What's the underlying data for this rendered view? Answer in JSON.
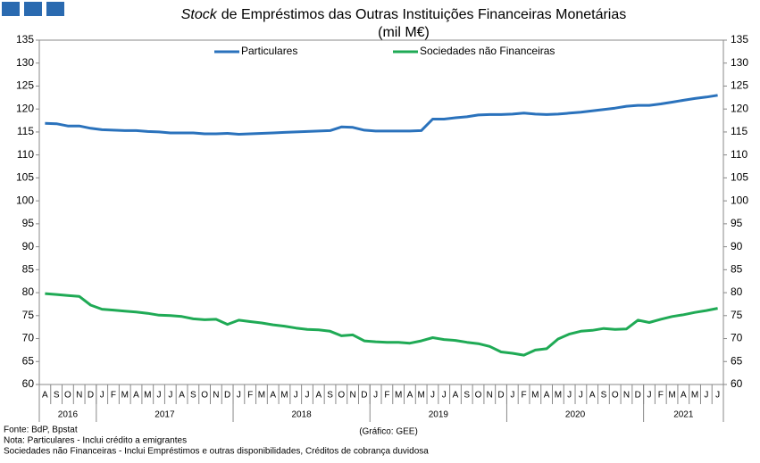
{
  "chart_data": {
    "type": "line",
    "title_emphasis": "Stock",
    "title": "de Empréstimos das Outras Instituições Financeiras Monetárias",
    "subtitle": "(mil M€)",
    "categories": [
      {
        "month": "A",
        "year": "2016"
      },
      {
        "month": "S",
        "year": "2016"
      },
      {
        "month": "O",
        "year": "2016"
      },
      {
        "month": "N",
        "year": "2016"
      },
      {
        "month": "D",
        "year": "2016"
      },
      {
        "month": "J",
        "year": "2017"
      },
      {
        "month": "F",
        "year": "2017"
      },
      {
        "month": "M",
        "year": "2017"
      },
      {
        "month": "A",
        "year": "2017"
      },
      {
        "month": "M",
        "year": "2017"
      },
      {
        "month": "J",
        "year": "2017"
      },
      {
        "month": "J",
        "year": "2017"
      },
      {
        "month": "A",
        "year": "2017"
      },
      {
        "month": "S",
        "year": "2017"
      },
      {
        "month": "O",
        "year": "2017"
      },
      {
        "month": "N",
        "year": "2017"
      },
      {
        "month": "D",
        "year": "2017"
      },
      {
        "month": "J",
        "year": "2018"
      },
      {
        "month": "F",
        "year": "2018"
      },
      {
        "month": "M",
        "year": "2018"
      },
      {
        "month": "A",
        "year": "2018"
      },
      {
        "month": "M",
        "year": "2018"
      },
      {
        "month": "J",
        "year": "2018"
      },
      {
        "month": "J",
        "year": "2018"
      },
      {
        "month": "A",
        "year": "2018"
      },
      {
        "month": "S",
        "year": "2018"
      },
      {
        "month": "O",
        "year": "2018"
      },
      {
        "month": "N",
        "year": "2018"
      },
      {
        "month": "D",
        "year": "2018"
      },
      {
        "month": "J",
        "year": "2019"
      },
      {
        "month": "F",
        "year": "2019"
      },
      {
        "month": "M",
        "year": "2019"
      },
      {
        "month": "A",
        "year": "2019"
      },
      {
        "month": "M",
        "year": "2019"
      },
      {
        "month": "J",
        "year": "2019"
      },
      {
        "month": "J",
        "year": "2019"
      },
      {
        "month": "A",
        "year": "2019"
      },
      {
        "month": "S",
        "year": "2019"
      },
      {
        "month": "O",
        "year": "2019"
      },
      {
        "month": "N",
        "year": "2019"
      },
      {
        "month": "D",
        "year": "2019"
      },
      {
        "month": "J",
        "year": "2020"
      },
      {
        "month": "F",
        "year": "2020"
      },
      {
        "month": "M",
        "year": "2020"
      },
      {
        "month": "A",
        "year": "2020"
      },
      {
        "month": "M",
        "year": "2020"
      },
      {
        "month": "J",
        "year": "2020"
      },
      {
        "month": "J",
        "year": "2020"
      },
      {
        "month": "A",
        "year": "2020"
      },
      {
        "month": "S",
        "year": "2020"
      },
      {
        "month": "O",
        "year": "2020"
      },
      {
        "month": "N",
        "year": "2020"
      },
      {
        "month": "D",
        "year": "2020"
      },
      {
        "month": "J",
        "year": "2021"
      },
      {
        "month": "F",
        "year": "2021"
      },
      {
        "month": "M",
        "year": "2021"
      },
      {
        "month": "A",
        "year": "2021"
      },
      {
        "month": "M",
        "year": "2021"
      },
      {
        "month": "J",
        "year": "2021"
      },
      {
        "month": "J",
        "year": "2021"
      }
    ],
    "series": [
      {
        "name": "Particulares",
        "color": "#2a72bc",
        "values": [
          116.9,
          116.8,
          116.3,
          116.3,
          115.8,
          115.5,
          115.4,
          115.3,
          115.3,
          115.1,
          115.0,
          114.8,
          114.8,
          114.8,
          114.6,
          114.6,
          114.7,
          114.5,
          114.6,
          114.7,
          114.8,
          114.9,
          115.0,
          115.1,
          115.2,
          115.3,
          116.1,
          116.0,
          115.4,
          115.2,
          115.2,
          115.2,
          115.2,
          115.3,
          117.8,
          117.8,
          118.1,
          118.3,
          118.7,
          118.8,
          118.8,
          118.9,
          119.1,
          118.9,
          118.8,
          118.9,
          119.1,
          119.3,
          119.6,
          119.9,
          120.2,
          120.6,
          120.8,
          120.8,
          121.1,
          121.5,
          121.9,
          122.3,
          122.6,
          123.0
        ]
      },
      {
        "name": "Sociedades não Financeiras",
        "color": "#1faa55",
        "values": [
          79.8,
          79.6,
          79.4,
          79.2,
          77.3,
          76.4,
          76.2,
          76.0,
          75.8,
          75.5,
          75.1,
          75.0,
          74.8,
          74.3,
          74.1,
          74.2,
          73.1,
          74.0,
          73.7,
          73.4,
          73.0,
          72.7,
          72.3,
          72.0,
          71.9,
          71.6,
          70.6,
          70.8,
          69.5,
          69.3,
          69.2,
          69.2,
          69.0,
          69.5,
          70.2,
          69.8,
          69.6,
          69.2,
          68.9,
          68.3,
          67.1,
          66.8,
          66.4,
          67.5,
          67.8,
          69.9,
          71.0,
          71.6,
          71.8,
          72.2,
          72.0,
          72.1,
          74.0,
          73.5,
          74.2,
          74.8,
          75.2,
          75.7,
          76.1,
          76.6
        ]
      }
    ],
    "ylim": [
      60,
      135
    ],
    "yticks": [
      60,
      65,
      70,
      75,
      80,
      85,
      90,
      95,
      100,
      105,
      110,
      115,
      120,
      125,
      130,
      135
    ],
    "y2lim": [
      60,
      135
    ],
    "y2ticks": [
      60,
      65,
      70,
      75,
      80,
      85,
      90,
      95,
      100,
      105,
      110,
      115,
      120,
      125,
      130,
      135
    ],
    "notes": [
      "Fonte: BdP, Bpstat",
      "Nota: Particulares - Inclui crédito a emigrantes",
      "Sociedades não Financeiras - Inclui Empréstimos e outras disponibilidades, Créditos de cobrança duvidosa"
    ],
    "credit": "(Gráfico: GEE)"
  }
}
